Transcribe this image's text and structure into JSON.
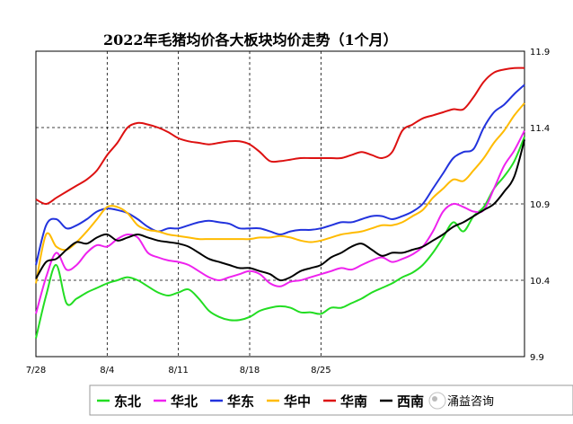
{
  "chart_data": {
    "type": "line",
    "title": "2022年毛猪均价各大板块均价走势（1个月）",
    "x_tick_labels": [
      "7/28",
      "8/4",
      "8/11",
      "8/18",
      "8/25"
    ],
    "y_tick_labels": [
      "9.9",
      "10.4",
      "10.9",
      "11.4",
      "11.9"
    ],
    "ylim": [
      9.9,
      11.9
    ],
    "grid": "dashed",
    "legend_position": "bottom",
    "watermark": "涌益咨询",
    "series": [
      {
        "name": "东北",
        "color": "#22dd22",
        "values": [
          10.02,
          10.3,
          10.5,
          10.25,
          10.28,
          10.32,
          10.35,
          10.38,
          10.4,
          10.42,
          10.4,
          10.36,
          10.32,
          10.3,
          10.32,
          10.34,
          10.28,
          10.2,
          10.16,
          10.14,
          10.14,
          10.16,
          10.2,
          10.22,
          10.23,
          10.22,
          10.19,
          10.19,
          10.18,
          10.22,
          10.22,
          10.25,
          10.28,
          10.32,
          10.35,
          10.38,
          10.42,
          10.45,
          10.5,
          10.58,
          10.68,
          10.78,
          10.72,
          10.82,
          10.88,
          11.0,
          11.08,
          11.18,
          11.34
        ]
      },
      {
        "name": "华北",
        "color": "#ee22ee",
        "values": [
          10.18,
          10.42,
          10.58,
          10.47,
          10.5,
          10.58,
          10.63,
          10.62,
          10.67,
          10.7,
          10.68,
          10.58,
          10.55,
          10.53,
          10.52,
          10.5,
          10.46,
          10.42,
          10.4,
          10.42,
          10.44,
          10.46,
          10.44,
          10.38,
          10.36,
          10.39,
          10.4,
          10.42,
          10.44,
          10.46,
          10.48,
          10.47,
          10.5,
          10.53,
          10.55,
          10.52,
          10.54,
          10.57,
          10.62,
          10.72,
          10.85,
          10.9,
          10.88,
          10.85,
          10.86,
          11.0,
          11.15,
          11.25,
          11.38
        ]
      },
      {
        "name": "华东",
        "color": "#2233dd",
        "values": [
          10.5,
          10.76,
          10.8,
          10.74,
          10.76,
          10.8,
          10.85,
          10.87,
          10.86,
          10.84,
          10.8,
          10.75,
          10.72,
          10.74,
          10.74,
          10.76,
          10.78,
          10.79,
          10.78,
          10.77,
          10.74,
          10.74,
          10.74,
          10.72,
          10.7,
          10.72,
          10.73,
          10.73,
          10.74,
          10.76,
          10.78,
          10.78,
          10.8,
          10.82,
          10.82,
          10.8,
          10.82,
          10.85,
          10.9,
          11.0,
          11.1,
          11.2,
          11.24,
          11.26,
          11.4,
          11.5,
          11.55,
          11.62,
          11.68
        ]
      },
      {
        "name": "华中",
        "color": "#ffbb00",
        "values": [
          10.38,
          10.7,
          10.62,
          10.6,
          10.65,
          10.72,
          10.8,
          10.88,
          10.88,
          10.84,
          10.76,
          10.73,
          10.72,
          10.7,
          10.69,
          10.68,
          10.67,
          10.67,
          10.67,
          10.67,
          10.67,
          10.67,
          10.68,
          10.68,
          10.69,
          10.68,
          10.66,
          10.65,
          10.66,
          10.68,
          10.7,
          10.71,
          10.72,
          10.74,
          10.76,
          10.76,
          10.78,
          10.82,
          10.86,
          10.94,
          11.0,
          11.06,
          11.05,
          11.12,
          11.2,
          11.3,
          11.38,
          11.48,
          11.56
        ]
      },
      {
        "name": "华南",
        "color": "#dd1111",
        "values": [
          10.93,
          10.9,
          10.94,
          10.98,
          11.02,
          11.06,
          11.12,
          11.22,
          11.3,
          11.4,
          11.43,
          11.42,
          11.4,
          11.37,
          11.33,
          11.31,
          11.3,
          11.29,
          11.3,
          11.31,
          11.31,
          11.29,
          11.24,
          11.18,
          11.18,
          11.19,
          11.2,
          11.2,
          11.2,
          11.2,
          11.2,
          11.22,
          11.24,
          11.22,
          11.2,
          11.24,
          11.38,
          11.42,
          11.46,
          11.48,
          11.5,
          11.52,
          11.52,
          11.6,
          11.7,
          11.76,
          11.78,
          11.79,
          11.79
        ]
      },
      {
        "name": "西南",
        "color": "#000000",
        "values": [
          10.41,
          10.52,
          10.54,
          10.6,
          10.65,
          10.64,
          10.68,
          10.7,
          10.66,
          10.68,
          10.7,
          10.68,
          10.66,
          10.65,
          10.64,
          10.62,
          10.58,
          10.54,
          10.52,
          10.5,
          10.48,
          10.48,
          10.46,
          10.44,
          10.4,
          10.42,
          10.46,
          10.48,
          10.5,
          10.55,
          10.58,
          10.62,
          10.64,
          10.6,
          10.56,
          10.58,
          10.58,
          10.6,
          10.62,
          10.66,
          10.7,
          10.75,
          10.78,
          10.82,
          10.86,
          10.9,
          10.98,
          11.08,
          11.32
        ]
      }
    ]
  }
}
